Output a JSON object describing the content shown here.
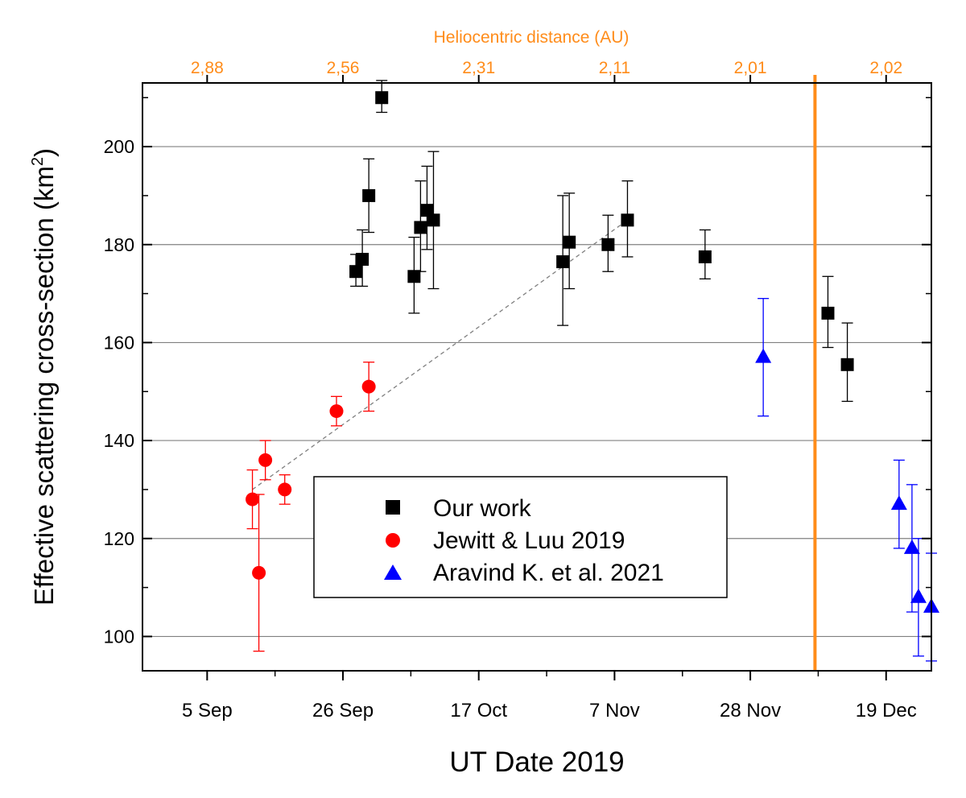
{
  "colors": {
    "black": "#000000",
    "red": "#ff0000",
    "blue": "#0000ff",
    "orange": "#ff8c1a",
    "grid": "#808080",
    "trend": "#808080"
  },
  "chart_data": {
    "type": "scatter",
    "xlabel": "UT Date 2019",
    "ylabel": "Effective scattering cross-section (km²)",
    "ylabel_main": "Effective scattering cross-section (km",
    "ylabel_sup": "2",
    "ylabel_tail": ")",
    "top_axis_label": "Heliocentric distance (AU)",
    "x_range_days_note": "x values are dates (day of 2019)",
    "xlim": [
      "2019-08-26",
      "2019-12-26"
    ],
    "ylim": [
      93,
      213
    ],
    "x_ticks": [
      {
        "date": "2019-09-05",
        "label": "5 Sep"
      },
      {
        "date": "2019-09-26",
        "label": "26 Sep"
      },
      {
        "date": "2019-10-17",
        "label": "17 Oct"
      },
      {
        "date": "2019-11-07",
        "label": "7 Nov"
      },
      {
        "date": "2019-11-28",
        "label": "28 Nov"
      },
      {
        "date": "2019-12-19",
        "label": "19 Dec"
      }
    ],
    "y_ticks": [
      100,
      120,
      140,
      160,
      180,
      200
    ],
    "top_ticks": [
      {
        "date": "2019-09-05",
        "label": "2,88"
      },
      {
        "date": "2019-09-26",
        "label": "2,56"
      },
      {
        "date": "2019-10-17",
        "label": "2,31"
      },
      {
        "date": "2019-11-07",
        "label": "2,11"
      },
      {
        "date": "2019-11-28",
        "label": "2,01"
      },
      {
        "date": "2019-12-19",
        "label": "2,02"
      }
    ],
    "grid": "horizontal",
    "legend_position": "center",
    "vertical_marker_date": "2019-12-08",
    "trend_line": {
      "from": [
        "2019-09-12",
        130
      ],
      "to": [
        "2019-11-09",
        185
      ],
      "style": "dashed"
    },
    "series": [
      {
        "name": "Our work",
        "marker": "square",
        "color": "#000000",
        "points": [
          {
            "x": "2019-09-28",
            "y": 174.5,
            "lo": 171.5,
            "hi": 178
          },
          {
            "x": "2019-09-29",
            "y": 177,
            "lo": 171.5,
            "hi": 183
          },
          {
            "x": "2019-09-30",
            "y": 190,
            "lo": 182.5,
            "hi": 197.5
          },
          {
            "x": "2019-10-02",
            "y": 210,
            "lo": 207,
            "hi": 213.5
          },
          {
            "x": "2019-10-07",
            "y": 173.5,
            "lo": 166,
            "hi": 181.5
          },
          {
            "x": "2019-10-08",
            "y": 183.5,
            "lo": 174.5,
            "hi": 193
          },
          {
            "x": "2019-10-09",
            "y": 187,
            "lo": 179,
            "hi": 196
          },
          {
            "x": "2019-10-10",
            "y": 185,
            "lo": 171,
            "hi": 199
          },
          {
            "x": "2019-10-30",
            "y": 176.5,
            "lo": 163.5,
            "hi": 190
          },
          {
            "x": "2019-10-31",
            "y": 180.5,
            "lo": 171,
            "hi": 190.5
          },
          {
            "x": "2019-11-06",
            "y": 180,
            "lo": 174.5,
            "hi": 186
          },
          {
            "x": "2019-11-09",
            "y": 185,
            "lo": 177.5,
            "hi": 193
          },
          {
            "x": "2019-11-21",
            "y": 177.5,
            "lo": 173,
            "hi": 183
          },
          {
            "x": "2019-12-10",
            "y": 166,
            "lo": 159,
            "hi": 173.5
          },
          {
            "x": "2019-12-13",
            "y": 155.5,
            "lo": 148,
            "hi": 164
          }
        ]
      },
      {
        "name": "Jewitt & Luu 2019",
        "marker": "circle",
        "color": "#ff0000",
        "points": [
          {
            "x": "2019-09-12",
            "y": 128,
            "lo": 122,
            "hi": 134
          },
          {
            "x": "2019-09-13",
            "y": 113,
            "lo": 97,
            "hi": 129
          },
          {
            "x": "2019-09-14",
            "y": 136,
            "lo": 132,
            "hi": 140
          },
          {
            "x": "2019-09-17",
            "y": 130,
            "lo": 127,
            "hi": 133
          },
          {
            "x": "2019-09-25",
            "y": 146,
            "lo": 143,
            "hi": 149
          },
          {
            "x": "2019-09-30",
            "y": 151,
            "lo": 146,
            "hi": 156
          }
        ]
      },
      {
        "name": "Aravind K. et al. 2021",
        "marker": "triangle",
        "color": "#0000ff",
        "points": [
          {
            "x": "2019-11-30",
            "y": 157,
            "lo": 145,
            "hi": 169
          },
          {
            "x": "2019-12-21",
            "y": 127,
            "lo": 118,
            "hi": 136
          },
          {
            "x": "2019-12-23",
            "y": 118,
            "lo": 105,
            "hi": 131
          },
          {
            "x": "2019-12-24",
            "y": 108,
            "lo": 96,
            "hi": 120
          },
          {
            "x": "2019-12-26",
            "y": 106,
            "lo": 95,
            "hi": 117
          }
        ]
      }
    ]
  }
}
